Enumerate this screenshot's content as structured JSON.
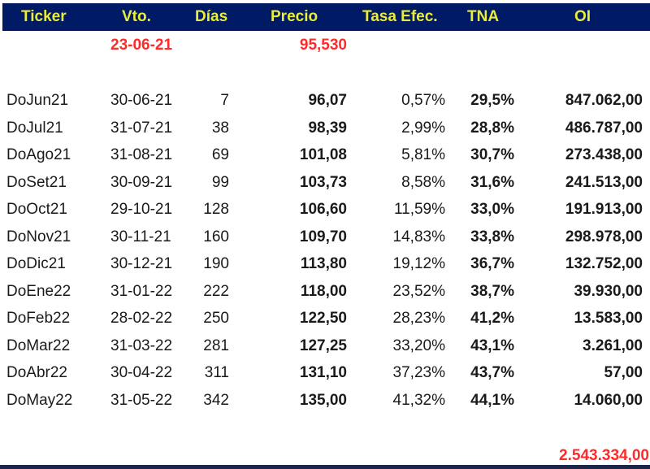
{
  "header": {
    "columns": [
      "Ticker",
      "Vto.",
      "Días",
      "Precio",
      "Tasa Efec.",
      "TNA",
      "OI"
    ]
  },
  "reference": {
    "date": "23-06-21",
    "price": "95,530"
  },
  "rows": [
    {
      "ticker": "DoJun21",
      "vto": "30-06-21",
      "dias": "7",
      "precio": "96,07",
      "tasa": "0,57%",
      "tna": "29,5%",
      "oi": "847.062,00"
    },
    {
      "ticker": "DoJul21",
      "vto": "31-07-21",
      "dias": "38",
      "precio": "98,39",
      "tasa": "2,99%",
      "tna": "28,8%",
      "oi": "486.787,00"
    },
    {
      "ticker": "DoAgo21",
      "vto": "31-08-21",
      "dias": "69",
      "precio": "101,08",
      "tasa": "5,81%",
      "tna": "30,7%",
      "oi": "273.438,00"
    },
    {
      "ticker": "DoSet21",
      "vto": "30-09-21",
      "dias": "99",
      "precio": "103,73",
      "tasa": "8,58%",
      "tna": "31,6%",
      "oi": "241.513,00"
    },
    {
      "ticker": "DoOct21",
      "vto": "29-10-21",
      "dias": "128",
      "precio": "106,60",
      "tasa": "11,59%",
      "tna": "33,0%",
      "oi": "191.913,00"
    },
    {
      "ticker": "DoNov21",
      "vto": "30-11-21",
      "dias": "160",
      "precio": "109,70",
      "tasa": "14,83%",
      "tna": "33,8%",
      "oi": "298.978,00"
    },
    {
      "ticker": "DoDic21",
      "vto": "30-12-21",
      "dias": "190",
      "precio": "113,80",
      "tasa": "19,12%",
      "tna": "36,7%",
      "oi": "132.752,00"
    },
    {
      "ticker": "DoEne22",
      "vto": "31-01-22",
      "dias": "222",
      "precio": "118,00",
      "tasa": "23,52%",
      "tna": "38,7%",
      "oi": "39.930,00"
    },
    {
      "ticker": "DoFeb22",
      "vto": "28-02-22",
      "dias": "250",
      "precio": "122,50",
      "tasa": "28,23%",
      "tna": "41,2%",
      "oi": "13.583,00"
    },
    {
      "ticker": "DoMar22",
      "vto": "31-03-22",
      "dias": "281",
      "precio": "127,25",
      "tasa": "33,20%",
      "tna": "43,1%",
      "oi": "3.261,00"
    },
    {
      "ticker": "DoAbr22",
      "vto": "30-04-22",
      "dias": "311",
      "precio": "131,10",
      "tasa": "37,23%",
      "tna": "43,7%",
      "oi": "57,00"
    },
    {
      "ticker": "DoMay22",
      "vto": "31-05-22",
      "dias": "342",
      "precio": "135,00",
      "tasa": "41,32%",
      "tna": "44,1%",
      "oi": "14.060,00"
    }
  ],
  "total": {
    "oi": "2.543.334,00"
  },
  "colors": {
    "header_bg": "#001a66",
    "header_text": "#e8ec3a",
    "highlight_red": "#ff2a2a",
    "body_text": "#1a1a1a"
  }
}
